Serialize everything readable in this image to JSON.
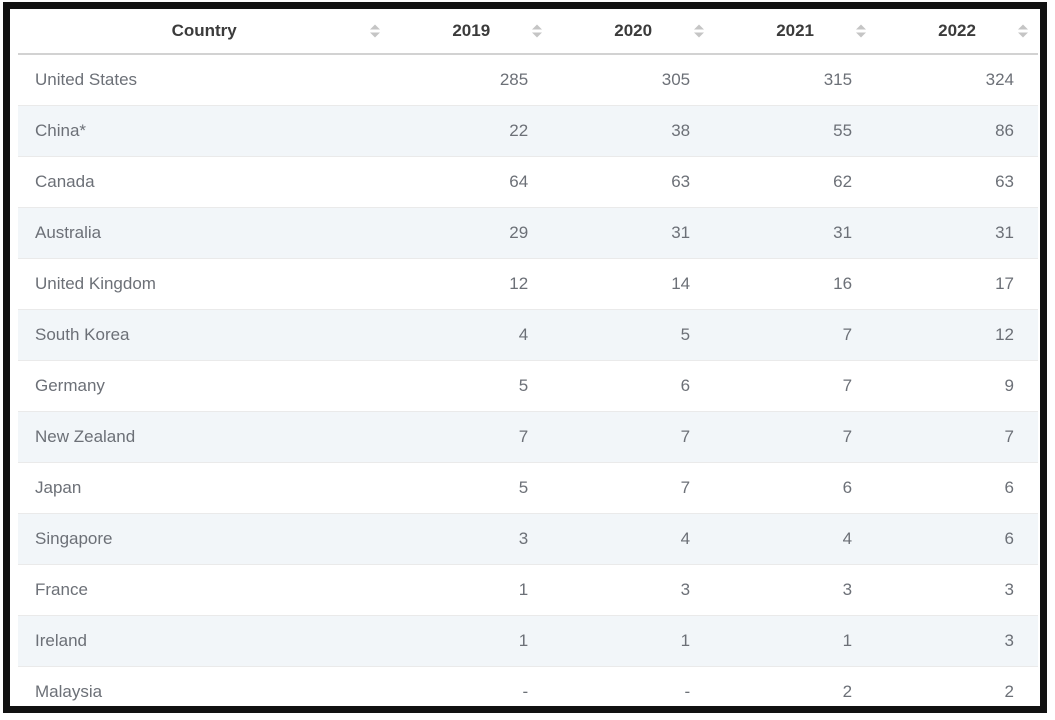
{
  "table": {
    "columns": [
      {
        "label": "Country",
        "type": "text",
        "sortable": true
      },
      {
        "label": "2019",
        "type": "number",
        "sortable": true
      },
      {
        "label": "2020",
        "type": "number",
        "sortable": true
      },
      {
        "label": "2021",
        "type": "number",
        "sortable": true
      },
      {
        "label": "2022",
        "type": "number",
        "sortable": true
      }
    ],
    "rows": [
      {
        "country": "United States",
        "values": [
          "285",
          "305",
          "315",
          "324"
        ]
      },
      {
        "country": "China*",
        "values": [
          "22",
          "38",
          "55",
          "86"
        ]
      },
      {
        "country": "Canada",
        "values": [
          "64",
          "63",
          "62",
          "63"
        ]
      },
      {
        "country": "Australia",
        "values": [
          "29",
          "31",
          "31",
          "31"
        ]
      },
      {
        "country": "United Kingdom",
        "values": [
          "12",
          "14",
          "16",
          "17"
        ]
      },
      {
        "country": "South Korea",
        "values": [
          "4",
          "5",
          "7",
          "12"
        ]
      },
      {
        "country": "Germany",
        "values": [
          "5",
          "6",
          "7",
          "9"
        ]
      },
      {
        "country": "New Zealand",
        "values": [
          "7",
          "7",
          "7",
          "7"
        ]
      },
      {
        "country": "Japan",
        "values": [
          "5",
          "7",
          "6",
          "6"
        ]
      },
      {
        "country": "Singapore",
        "values": [
          "3",
          "4",
          "4",
          "6"
        ]
      },
      {
        "country": "France",
        "values": [
          "1",
          "3",
          "3",
          "3"
        ]
      },
      {
        "country": "Ireland",
        "values": [
          "1",
          "1",
          "1",
          "3"
        ]
      },
      {
        "country": "Malaysia",
        "values": [
          "-",
          "-",
          "2",
          "2"
        ]
      }
    ],
    "empty_value_marker": "-"
  },
  "icons": {
    "sort": "sort-toggle-icon"
  },
  "colors": {
    "frame_border": "#111111",
    "header_text": "#3b3b3b",
    "header_divider": "#d2d2d2",
    "body_text": "#6c7077",
    "stripe_bg": "#f2f6f9",
    "row_divider": "#eaeaea",
    "sort_icon": "#c5c5c5"
  }
}
